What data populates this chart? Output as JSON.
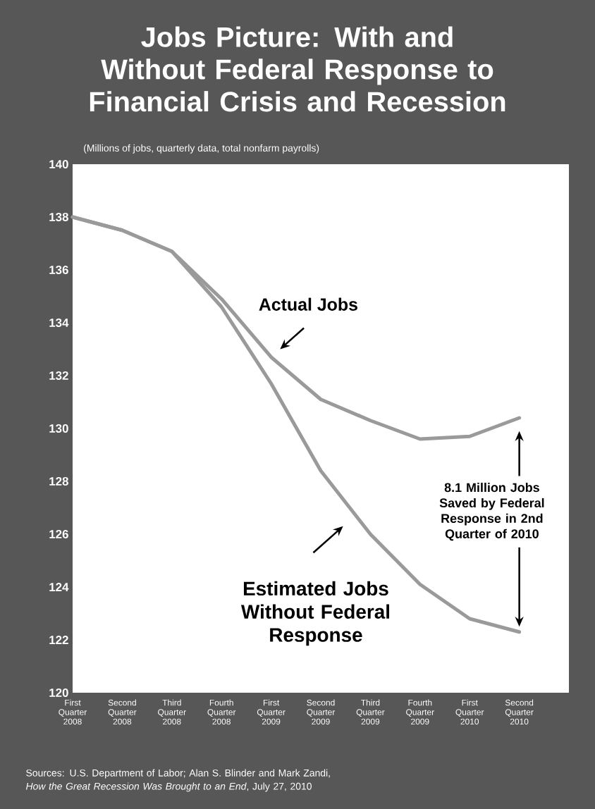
{
  "chart_data": {
    "type": "line",
    "title": "Jobs Picture: With and Without Federal Response to Financial Crisis and Recession",
    "subtitle": "(Millions of jobs, quarterly data, total nonfarm payrolls)",
    "categories": [
      "First Quarter 2008",
      "Second Quarter 2008",
      "Third Quarter 2008",
      "Fourth Quarter 2008",
      "First Quarter 2009",
      "Second Quarter 2009",
      "Third Quarter 2009",
      "Fourth Quarter 2009",
      "First Quarter 2010",
      "Second Quarter 2010"
    ],
    "series": [
      {
        "name": "Estimated Jobs Without Federal Response",
        "color": "#9a9a9a",
        "values": [
          138.0,
          137.5,
          136.7,
          134.6,
          131.7,
          128.4,
          126.0,
          124.1,
          122.8,
          122.3
        ]
      },
      {
        "name": "Actual Jobs",
        "color": "#9a9a9a",
        "values": [
          138.0,
          137.5,
          136.7,
          134.9,
          132.7,
          131.1,
          130.3,
          129.6,
          129.7,
          130.4
        ]
      }
    ],
    "ylim": [
      120,
      140
    ],
    "yticks": [
      120,
      122,
      124,
      126,
      128,
      130,
      132,
      134,
      136,
      138,
      140
    ],
    "grid": false,
    "marker": "none",
    "line_style": "solid",
    "annotations": [
      "8.1 Million Jobs Saved by Federal Response in 2nd Quarter of 2010",
      "Sources:  U.S. Department of Labor; Alan S. Blinder and Mark Zandi, *How the Great Recession Was Brought to an End*, July 27, 2010"
    ]
  }
}
